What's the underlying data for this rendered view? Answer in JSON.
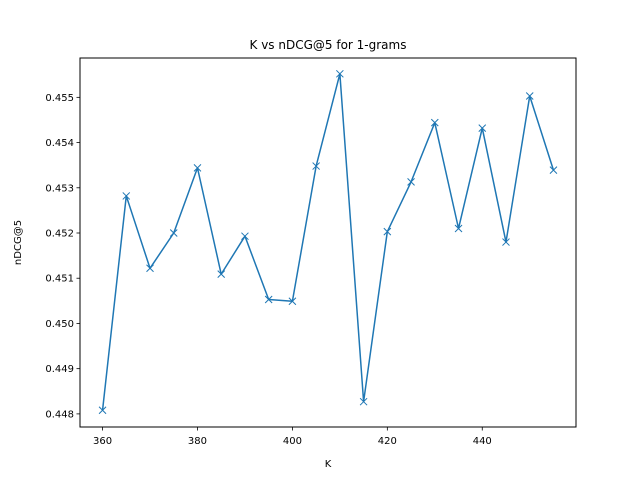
{
  "chart_data": {
    "type": "line",
    "title": "K vs nDCG@5 for 1-grams",
    "xlabel": "K",
    "ylabel": "nDCG@5",
    "xlim": [
      355.25,
      459.75
    ],
    "ylim": [
      0.44771,
      0.45587
    ],
    "xticks": [
      360,
      380,
      400,
      420,
      440
    ],
    "yticks": [
      0.448,
      0.449,
      0.45,
      0.451,
      0.452,
      0.453,
      0.454,
      0.455
    ],
    "ytick_labels": [
      "0.448",
      "0.449",
      "0.450",
      "0.451",
      "0.452",
      "0.453",
      "0.454",
      "0.455"
    ],
    "grid": false,
    "series": [
      {
        "color": "#1f77b4",
        "marker": "x",
        "x": [
          360,
          365,
          370,
          375,
          380,
          385,
          390,
          395,
          400,
          405,
          410,
          415,
          420,
          425,
          430,
          435,
          440,
          445,
          450,
          455
        ],
        "y": [
          0.44808,
          0.45282,
          0.45122,
          0.452,
          0.45344,
          0.45109,
          0.45193,
          0.45053,
          0.45049,
          0.45348,
          0.45552,
          0.44827,
          0.45203,
          0.45313,
          0.45444,
          0.4521,
          0.45432,
          0.4518,
          0.45503,
          0.45339
        ]
      }
    ]
  }
}
